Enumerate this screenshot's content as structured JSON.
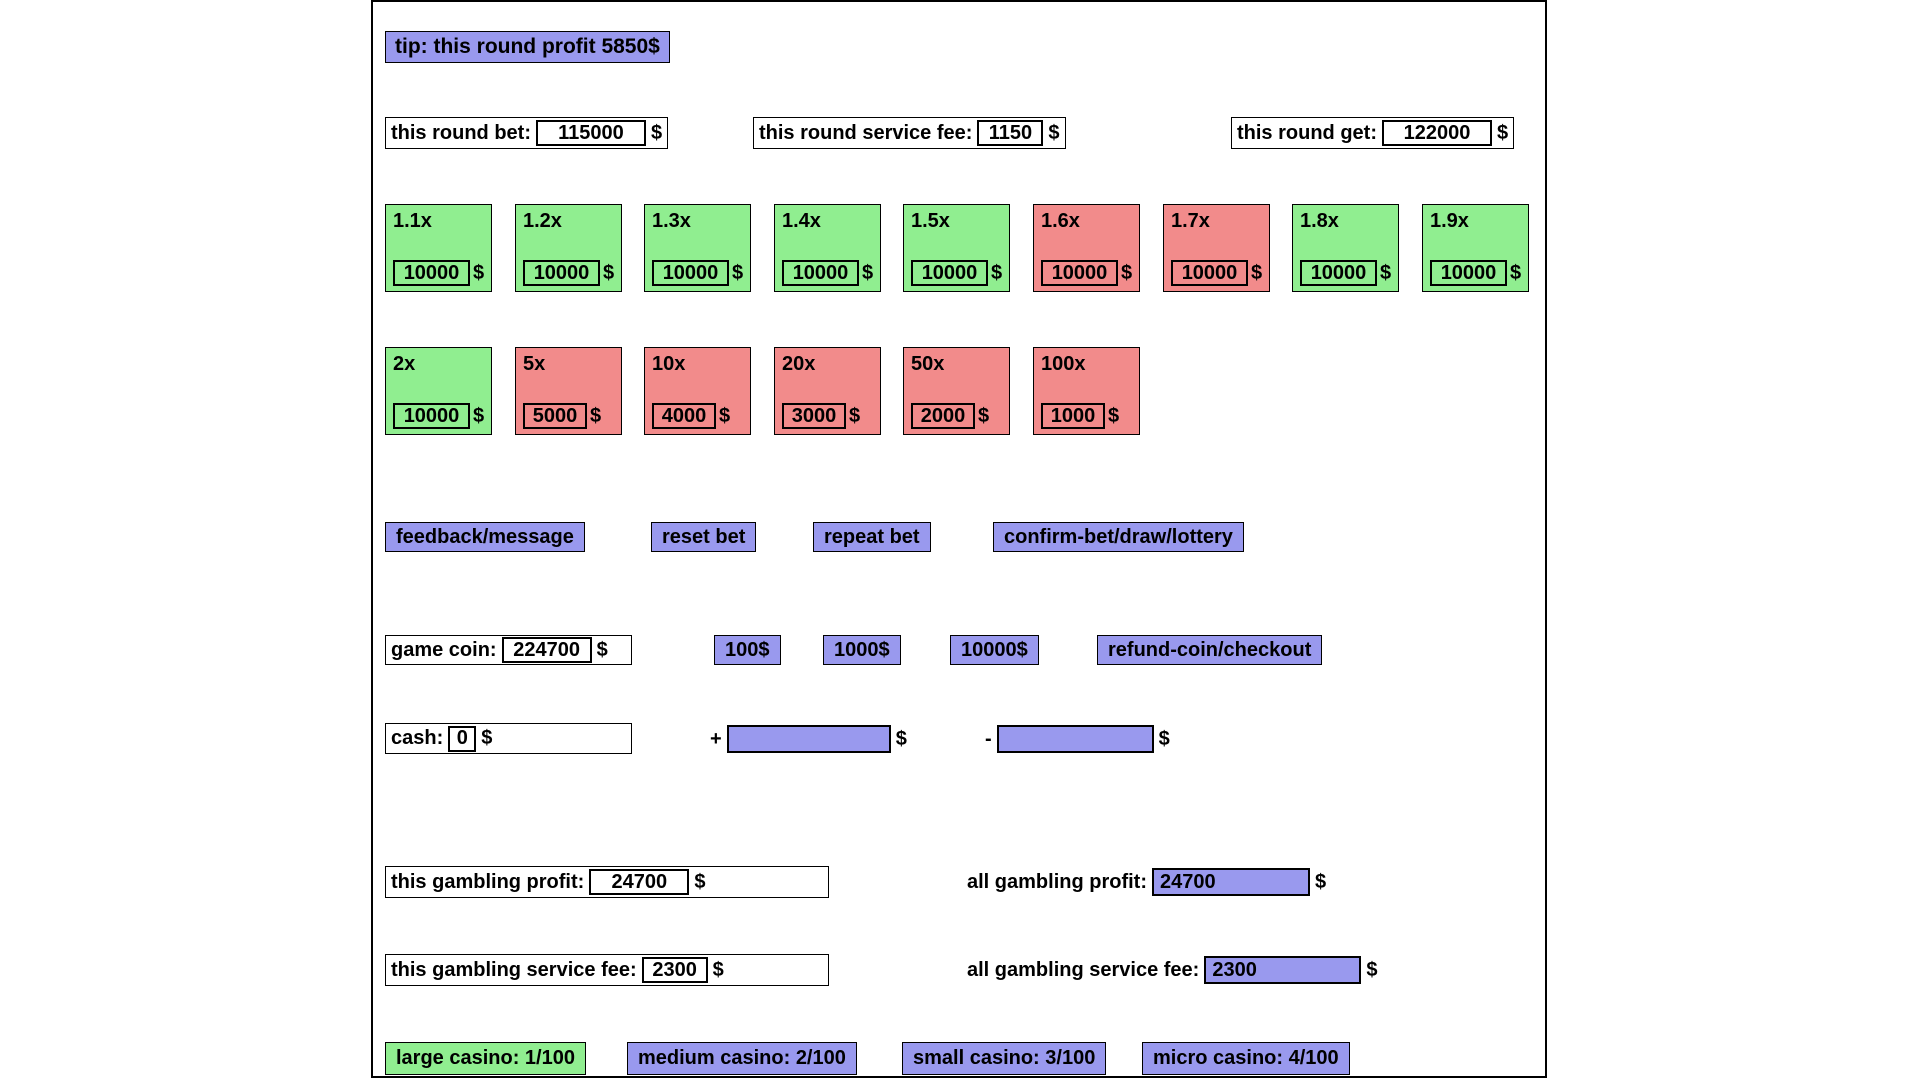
{
  "currency": "$",
  "colors": {
    "purple": "#9999ee",
    "green": "#90ee90",
    "red": "#f28b8b"
  },
  "tip_label": "tip: this round profit 5850$",
  "round": {
    "bet_label": "this round bet:",
    "bet_value": "115000",
    "fee_label": "this round service fee:",
    "fee_value": "1150",
    "get_label": "this round get:",
    "get_value": "122000"
  },
  "multipliers_row1": [
    {
      "label": "1.1x",
      "value": "10000",
      "color": "green"
    },
    {
      "label": "1.2x",
      "value": "10000",
      "color": "green"
    },
    {
      "label": "1.3x",
      "value": "10000",
      "color": "green"
    },
    {
      "label": "1.4x",
      "value": "10000",
      "color": "green"
    },
    {
      "label": "1.5x",
      "value": "10000",
      "color": "green"
    },
    {
      "label": "1.6x",
      "value": "10000",
      "color": "red"
    },
    {
      "label": "1.7x",
      "value": "10000",
      "color": "red"
    },
    {
      "label": "1.8x",
      "value": "10000",
      "color": "green"
    },
    {
      "label": "1.9x",
      "value": "10000",
      "color": "green"
    }
  ],
  "multipliers_row2": [
    {
      "label": "2x",
      "value": "10000",
      "color": "green"
    },
    {
      "label": "5x",
      "value": "5000",
      "color": "red"
    },
    {
      "label": "10x",
      "value": "4000",
      "color": "red"
    },
    {
      "label": "20x",
      "value": "3000",
      "color": "red"
    },
    {
      "label": "50x",
      "value": "2000",
      "color": "red"
    },
    {
      "label": "100x",
      "value": "1000",
      "color": "red"
    }
  ],
  "actions": {
    "feedback": "feedback/message",
    "reset": "reset bet",
    "repeat": "repeat bet",
    "confirm": "confirm-bet/draw/lottery"
  },
  "coin": {
    "label": "game coin:",
    "value": "224700",
    "add100": "100$",
    "add1000": "1000$",
    "add10000": "10000$",
    "refund": "refund-coin/checkout"
  },
  "cash": {
    "label": "cash:",
    "value": "0",
    "plus": "+",
    "plus_value": "",
    "minus": "-",
    "minus_value": ""
  },
  "profit": {
    "this_label": "this gambling profit:",
    "this_value": "24700",
    "all_label": "all gambling profit:",
    "all_value": "24700"
  },
  "service": {
    "this_label": "this gambling service fee:",
    "this_value": "2300",
    "all_label": "all gambling service fee:",
    "all_value": "2300"
  },
  "casinos": [
    {
      "label": "large casino: 1/100",
      "color": "green"
    },
    {
      "label": "medium casino: 2/100",
      "color": "purple"
    },
    {
      "label": "small casino: 3/100",
      "color": "purple"
    },
    {
      "label": "micro casino: 4/100",
      "color": "purple"
    }
  ]
}
